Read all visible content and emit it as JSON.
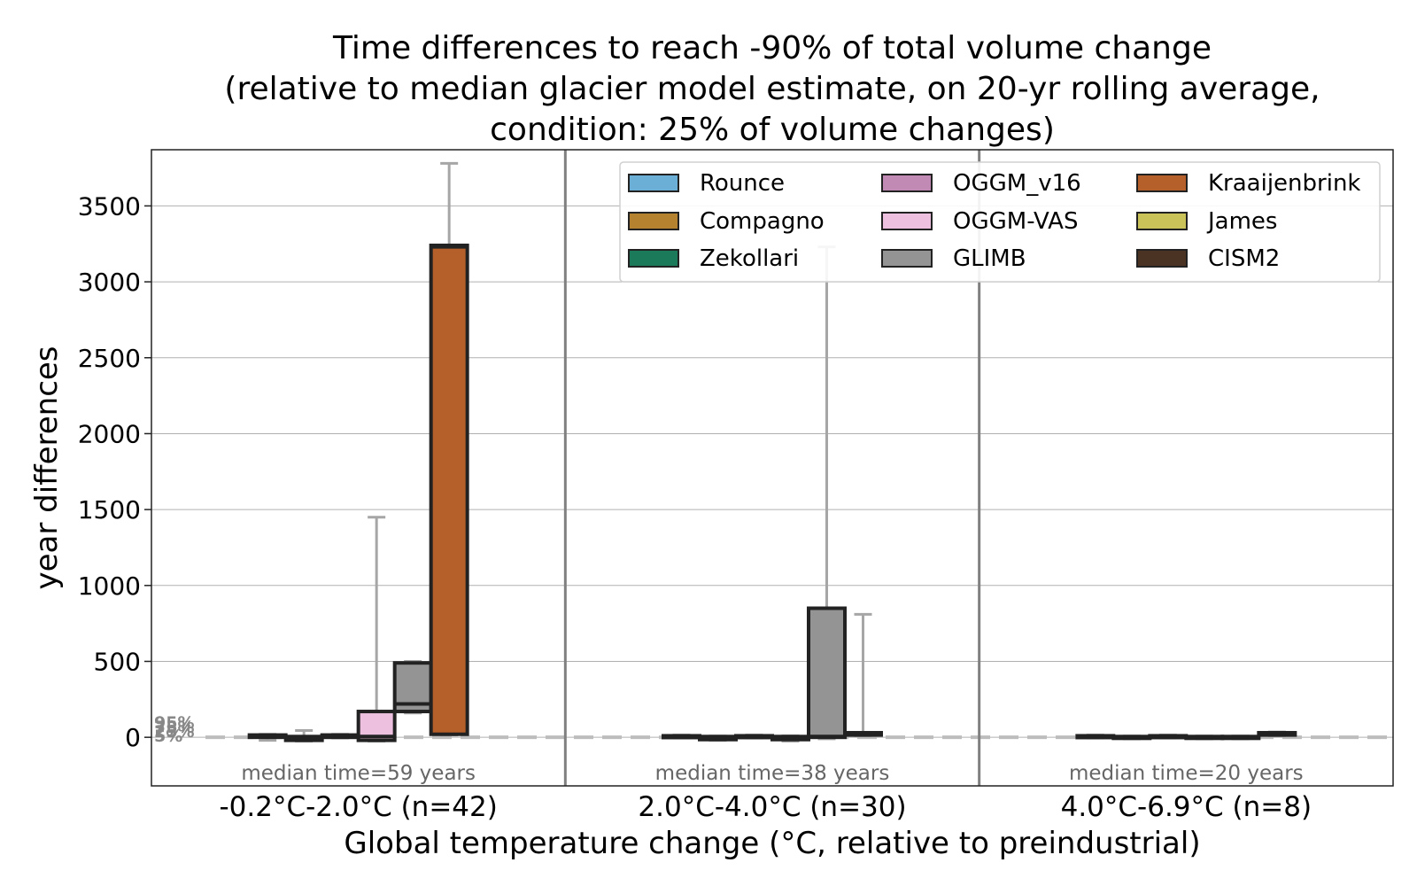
{
  "chart_data": {
    "type": "bar",
    "title_lines": [
      "Time differences to reach -90% of total volume change",
      "(relative to median glacier model estimate, on 20-yr rolling average,",
      "condition: 25% of volume changes)"
    ],
    "xlabel": "Global temperature change (°C, relative to preindustrial)",
    "ylabel": "year differences",
    "ylim": [
      -320,
      3870
    ],
    "yticks": [
      0,
      500,
      1000,
      1500,
      2000,
      2500,
      3000,
      3500
    ],
    "grid": true,
    "legend_position": "top-right",
    "percentile_labels": [
      "95%",
      "75%",
      "25%",
      "5%"
    ],
    "reference_line": 0,
    "models": [
      {
        "name": "Rounce",
        "color": "#6baed6"
      },
      {
        "name": "Compagno",
        "color": "#b5832f"
      },
      {
        "name": "Zekollari",
        "color": "#1b7a5a"
      },
      {
        "name": "OGGM_v16",
        "color": "#c08ab4"
      },
      {
        "name": "OGGM-VAS",
        "color": "#ecc0de"
      },
      {
        "name": "GLIMB",
        "color": "#949494"
      },
      {
        "name": "Kraaijenbrink",
        "color": "#b5602a"
      },
      {
        "name": "James",
        "color": "#c9c35a"
      },
      {
        "name": "CISM2",
        "color": "#4a3322"
      }
    ],
    "categories": [
      {
        "label": "-0.2°C-2.0°C (n=42)",
        "median_label": "median time=59 years",
        "boxes": [
          {
            "model": "Compagno",
            "q1": 0,
            "median": 5,
            "q3": 15,
            "low": -20,
            "high": 20
          },
          {
            "model": "Zekollari",
            "q1": -20,
            "median": -5,
            "q3": 5,
            "low": -25,
            "high": 45
          },
          {
            "model": "OGGM_v16",
            "q1": 0,
            "median": 5,
            "q3": 15,
            "low": -5,
            "high": 20
          },
          {
            "model": "OGGM-VAS",
            "q1": -20,
            "median": 5,
            "q3": 170,
            "low": -25,
            "high": 1450
          },
          {
            "model": "GLIMB",
            "q1": 170,
            "median": 220,
            "q3": 490,
            "low": 160,
            "high": 500
          },
          {
            "model": "Kraaijenbrink",
            "q1": 20,
            "median": 3230,
            "q3": 3240,
            "low": 15,
            "high": 3780
          }
        ]
      },
      {
        "label": "2.0°C-4.0°C (n=30)",
        "median_label": "median time=38 years",
        "boxes": [
          {
            "model": "Compagno",
            "q1": 0,
            "median": 5,
            "q3": 10,
            "low": -5,
            "high": 15
          },
          {
            "model": "Zekollari",
            "q1": -15,
            "median": -5,
            "q3": 5,
            "low": -20,
            "high": 8
          },
          {
            "model": "OGGM_v16",
            "q1": 0,
            "median": 5,
            "q3": 10,
            "low": -5,
            "high": 15
          },
          {
            "model": "OGGM-VAS",
            "q1": -15,
            "median": -5,
            "q3": 5,
            "low": -25,
            "high": 10
          },
          {
            "model": "GLIMB",
            "q1": 0,
            "median": 5,
            "q3": 850,
            "low": -10,
            "high": 3230
          },
          {
            "model": "Kraaijenbrink",
            "q1": 15,
            "median": 25,
            "q3": 30,
            "low": 10,
            "high": 810
          }
        ]
      },
      {
        "label": "4.0°C-6.9°C (n=8)",
        "median_label": "median time=20 years",
        "boxes": [
          {
            "model": "Compagno",
            "q1": 0,
            "median": 5,
            "q3": 10,
            "low": -5,
            "high": 15
          },
          {
            "model": "Zekollari",
            "q1": -5,
            "median": 0,
            "q3": 5,
            "low": -10,
            "high": 8
          },
          {
            "model": "OGGM_v16",
            "q1": 0,
            "median": 5,
            "q3": 10,
            "low": -5,
            "high": 15
          },
          {
            "model": "OGGM-VAS",
            "q1": -5,
            "median": 0,
            "q3": 5,
            "low": -10,
            "high": 8
          },
          {
            "model": "GLIMB",
            "q1": -5,
            "median": 0,
            "q3": 5,
            "low": -10,
            "high": 8
          },
          {
            "model": "Kraaijenbrink",
            "q1": 15,
            "median": 20,
            "q3": 30,
            "low": 10,
            "high": 35
          }
        ]
      }
    ]
  }
}
